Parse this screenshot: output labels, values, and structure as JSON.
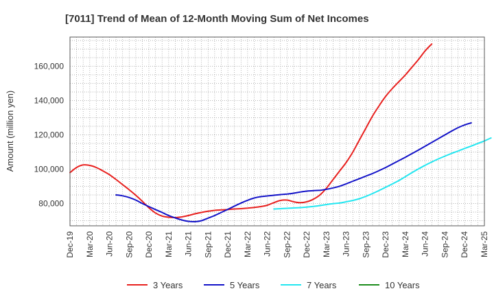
{
  "chart_data": {
    "type": "line",
    "title": "[7011]  Trend of Mean of 12-Month Moving Sum of Net Incomes",
    "xlabel": "",
    "ylabel": "Amount (million yen)",
    "x_ticks": [
      "Dec-19",
      "Mar-20",
      "Jun-20",
      "Sep-20",
      "Dec-20",
      "Mar-21",
      "Jun-21",
      "Sep-21",
      "Dec-21",
      "Mar-22",
      "Jun-22",
      "Sep-22",
      "Dec-22",
      "Mar-23",
      "Jun-23",
      "Sep-23",
      "Dec-23",
      "Mar-24",
      "Jun-24",
      "Sep-24",
      "Dec-24",
      "Mar-25"
    ],
    "y_ticks": [
      80000,
      100000,
      120000,
      140000,
      160000
    ],
    "y_tick_labels": [
      "80,000",
      "100,000",
      "120,000",
      "140,000",
      "160,000"
    ],
    "ylim": [
      67000,
      177000
    ],
    "grid": true,
    "legend_position": "bottom",
    "series": [
      {
        "name": "3 Years",
        "color": "#e8201e",
        "start_index": 0,
        "values": [
          98000,
          101000,
          102500,
          102200,
          101000,
          99000,
          96800,
          94000,
          91000,
          88000,
          84800,
          81300,
          77500,
          74500,
          72700,
          72000,
          71800,
          72200,
          73000,
          74000,
          74800,
          75500,
          76000,
          76300,
          76500,
          76800,
          77000,
          77300,
          77700,
          78200,
          79000,
          80500,
          81800,
          82000,
          81000,
          80500,
          81000,
          82500,
          85000,
          89000,
          94000,
          99000,
          104000,
          110000,
          117000,
          124000,
          131000,
          137000,
          142500,
          147000,
          151000,
          155000,
          159500,
          164000,
          169000,
          173000
        ]
      },
      {
        "name": "5 Years",
        "color": "#1212c8",
        "start_index": 7,
        "values": [
          85000,
          84500,
          83500,
          82000,
          80000,
          78200,
          76500,
          74800,
          73000,
          71600,
          70400,
          69600,
          69400,
          70000,
          71500,
          73000,
          74800,
          76600,
          78500,
          80300,
          81900,
          83200,
          84000,
          84400,
          84800,
          85200,
          85500,
          86000,
          86700,
          87200,
          87500,
          87700,
          88300,
          89100,
          90100,
          91500,
          93000,
          94500,
          96000,
          97500,
          99200,
          101000,
          103000,
          105000,
          107000,
          109100,
          111200,
          113400,
          115600,
          117800,
          120000,
          122200,
          124200,
          125800,
          127000
        ]
      },
      {
        "name": "7 Years",
        "color": "#22e6f0",
        "start_index": 31,
        "values": [
          76800,
          77000,
          77200,
          77400,
          77600,
          77900,
          78300,
          78800,
          79400,
          79900,
          80300,
          81000,
          81800,
          82800,
          84200,
          85800,
          87600,
          89500,
          91400,
          93400,
          95700,
          98000,
          100200,
          102300,
          104200,
          106000,
          107600,
          109200,
          110600,
          112100,
          113500,
          115000,
          116500,
          118200
        ]
      },
      {
        "name": "10 Years",
        "color": "#1b8c1b",
        "start_index": 0,
        "values": []
      }
    ]
  }
}
